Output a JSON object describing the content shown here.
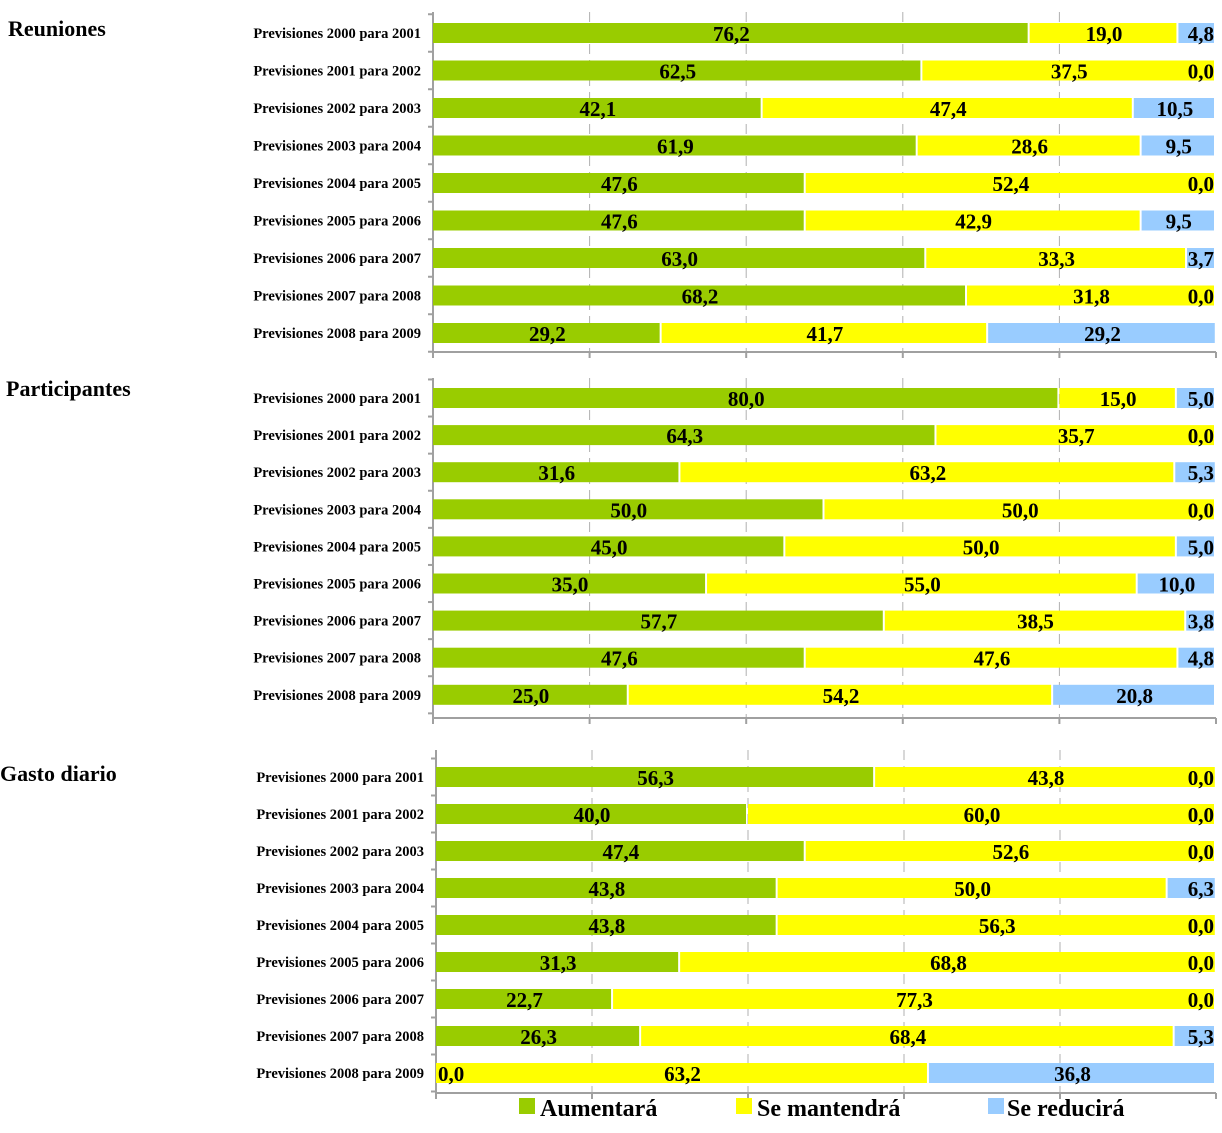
{
  "chart_data": {
    "type": "bar",
    "orientation": "horizontal",
    "stacked": true,
    "grid": true,
    "legend_placement": "bottom",
    "xlim": [
      0,
      100
    ],
    "categories": [
      "Previsiones 2000 para 2001",
      "Previsiones 2001 para 2002",
      "Previsiones 2002 para 2003",
      "Previsiones 2003 para 2004",
      "Previsiones 2004 para 2005",
      "Previsiones 2005 para 2006",
      "Previsiones 2006 para 2007",
      "Previsiones 2007 para 2008",
      "Previsiones 2008 para 2009"
    ],
    "legend": [
      {
        "name": "Aumentará",
        "color": "#99cc00"
      },
      {
        "name": "Se mantendrá",
        "color": "#ffff00"
      },
      {
        "name": "Se reducirá",
        "color": "#99ccff"
      }
    ],
    "panels": [
      {
        "title": "Reuniones",
        "series": [
          {
            "name": "Aumentará",
            "values": [
              76.2,
              62.5,
              42.1,
              61.9,
              47.6,
              47.6,
              63.0,
              68.2,
              29.2
            ],
            "labels": [
              "76,2",
              "62,5",
              "42,1",
              "61,9",
              "47,6",
              "47,6",
              "63,0",
              "68,2",
              "29,2"
            ]
          },
          {
            "name": "Se mantendrá",
            "values": [
              19.0,
              37.5,
              47.4,
              28.6,
              52.4,
              42.9,
              33.3,
              31.8,
              41.7
            ],
            "labels": [
              "19,0",
              "37,5",
              "47,4",
              "28,6",
              "52,4",
              "42,9",
              "33,3",
              "31,8",
              "41,7"
            ]
          },
          {
            "name": "Se reducirá",
            "values": [
              4.8,
              0.0,
              10.5,
              9.5,
              0.0,
              9.5,
              3.7,
              0.0,
              29.2
            ],
            "labels": [
              "4,8",
              "0,0",
              "10,5",
              "9,5",
              "0,0",
              "9,5",
              "3,7",
              "0,0",
              "29,2"
            ]
          }
        ]
      },
      {
        "title": "Participantes",
        "series": [
          {
            "name": "Aumentará",
            "values": [
              80.0,
              64.3,
              31.6,
              50.0,
              45.0,
              35.0,
              57.7,
              47.6,
              25.0
            ],
            "labels": [
              "80,0",
              "64,3",
              "31,6",
              "50,0",
              "45,0",
              "35,0",
              "57,7",
              "47,6",
              "25,0"
            ]
          },
          {
            "name": "Se mantendrá",
            "values": [
              15.0,
              35.7,
              63.2,
              50.0,
              50.0,
              55.0,
              38.5,
              47.6,
              54.2
            ],
            "labels": [
              "15,0",
              "35,7",
              "63,2",
              "50,0",
              "50,0",
              "55,0",
              "38,5",
              "47,6",
              "54,2"
            ]
          },
          {
            "name": "Se reducirá",
            "values": [
              5.0,
              0.0,
              5.3,
              0.0,
              5.0,
              10.0,
              3.8,
              4.8,
              20.8
            ],
            "labels": [
              "5,0",
              "0,0",
              "5,3",
              "0,0",
              "5,0",
              "10,0",
              "3,8",
              "4,8",
              "20,8"
            ]
          }
        ]
      },
      {
        "title": "Gasto diario",
        "series": [
          {
            "name": "Aumentará",
            "values": [
              56.3,
              40.0,
              47.4,
              43.8,
              43.8,
              31.3,
              22.7,
              26.3,
              0.0
            ],
            "labels": [
              "56,3",
              "40,0",
              "47,4",
              "43,8",
              "43,8",
              "31,3",
              "22,7",
              "26,3",
              "0,0"
            ]
          },
          {
            "name": "Se mantendrá",
            "values": [
              43.8,
              60.0,
              52.6,
              50.0,
              56.3,
              68.8,
              77.3,
              68.4,
              63.2
            ],
            "labels": [
              "43,8",
              "60,0",
              "52,6",
              "50,0",
              "56,3",
              "68,8",
              "77,3",
              "68,4",
              "63,2"
            ]
          },
          {
            "name": "Se reducirá",
            "values": [
              0.0,
              0.0,
              0.0,
              6.3,
              0.0,
              0.0,
              0.0,
              5.3,
              36.8
            ],
            "labels": [
              "0,0",
              "0,0",
              "0,0",
              "6,3",
              "0,0",
              "0,0",
              "0,0",
              "5,3",
              "36,8"
            ]
          }
        ]
      }
    ]
  }
}
